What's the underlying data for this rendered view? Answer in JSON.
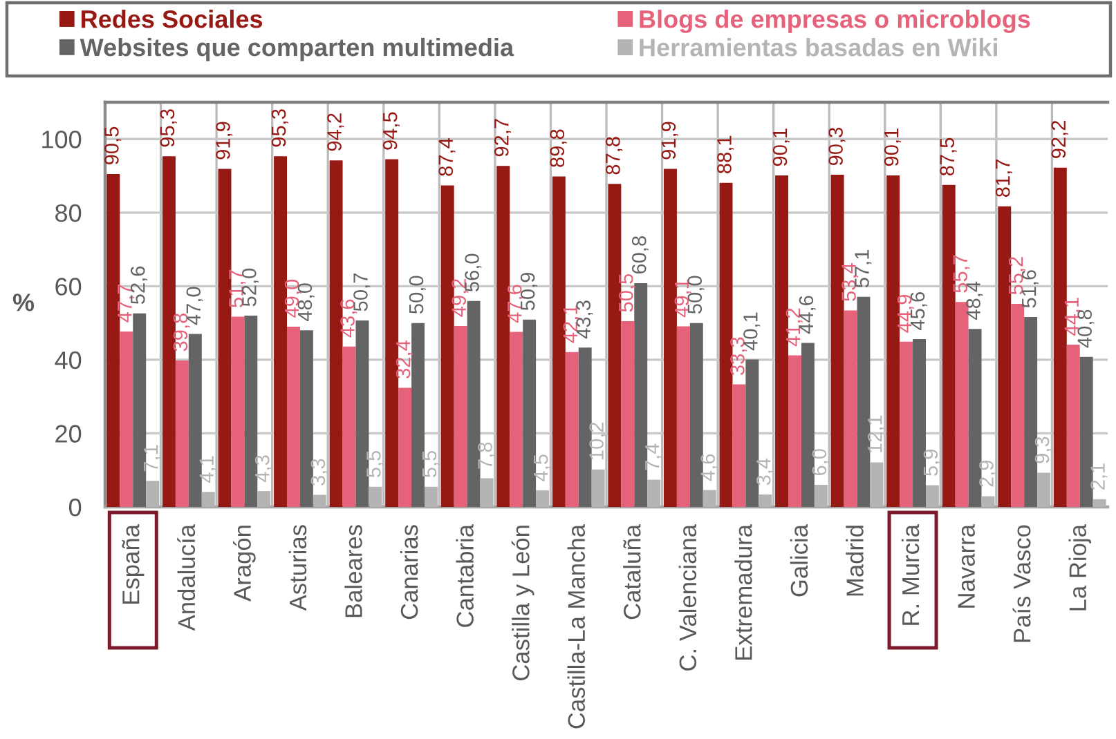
{
  "chart_data": {
    "type": "bar",
    "ylabel": "%",
    "categories": [
      "España",
      "Andalucía",
      "Aragón",
      "Asturias",
      "Baleares",
      "Canarias",
      "Cantabria",
      "Castilla y León",
      "Castilla-La Mancha",
      "Cataluña",
      "C. Valenciana",
      "Extremadura",
      "Galicia",
      "Madrid",
      "R. Murcia",
      "Navarra",
      "País Vasco",
      "La Rioja"
    ],
    "series": [
      {
        "name": "Redes Sociales",
        "color": "#961914",
        "values": [
          90.5,
          95.3,
          91.9,
          95.3,
          94.2,
          94.5,
          87.4,
          92.7,
          89.8,
          87.8,
          91.9,
          88.1,
          90.1,
          90.3,
          90.1,
          87.5,
          81.7,
          92.2
        ],
        "value_labels": [
          "90,5",
          "95,3",
          "91,9",
          "95,3",
          "94,2",
          "94,5",
          "87,4",
          "92,7",
          "89,8",
          "87,8",
          "91,9",
          "88,1",
          "90,1",
          "90,3",
          "90,1",
          "87,5",
          "81,7",
          "92,2"
        ]
      },
      {
        "name": "Blogs de empresas o microblogs",
        "color": "#e6627a",
        "values": [
          47.7,
          39.8,
          51.7,
          49.0,
          43.6,
          32.4,
          49.2,
          47.6,
          42.1,
          50.5,
          49.1,
          33.3,
          41.2,
          53.4,
          44.9,
          55.7,
          55.2,
          44.1
        ],
        "value_labels": [
          "47,7",
          "39,8",
          "51,7",
          "49,0",
          "43,6",
          "32,4",
          "49,2",
          "47,6",
          "42,1",
          "50,5",
          "49,1",
          "33,3",
          "41,2",
          "53,4",
          "44,9",
          "55,7",
          "55,2",
          "44,1"
        ]
      },
      {
        "name": "Websites que comparten multimedia",
        "color": "#646464",
        "values": [
          52.6,
          47.0,
          52.0,
          48.0,
          50.7,
          50.0,
          56.0,
          50.9,
          43.3,
          60.8,
          50.0,
          40.1,
          44.6,
          57.1,
          45.6,
          48.4,
          51.6,
          40.8
        ],
        "value_labels": [
          "52,6",
          "47,0",
          "52,0",
          "48,0",
          "50,7",
          "50,0",
          "56,0",
          "50,9",
          "43,3",
          "60,8",
          "50,0",
          "40,1",
          "44,6",
          "57,1",
          "45,6",
          "48,4",
          "51,6",
          "40,8"
        ]
      },
      {
        "name": "Herramientas basadas en Wiki",
        "color": "#b4b4b4",
        "values": [
          7.1,
          4.1,
          4.3,
          3.3,
          5.5,
          5.5,
          7.8,
          4.5,
          10.2,
          7.4,
          4.6,
          3.4,
          6.0,
          12.1,
          5.9,
          2.9,
          9.3,
          2.1
        ],
        "value_labels": [
          "7,1",
          "4,1",
          "4,3",
          "3,3",
          "5,5",
          "5,5",
          "7,8",
          "4,5",
          "10,2",
          "7,4",
          "4,6",
          "3,4",
          "6,0",
          "12,1",
          "5,9",
          "2,9",
          "9,3",
          "2,1"
        ]
      }
    ],
    "ylim": [
      0,
      110
    ],
    "yticks": [
      0,
      20,
      40,
      60,
      80,
      100
    ],
    "grid": true,
    "legend": "top"
  }
}
